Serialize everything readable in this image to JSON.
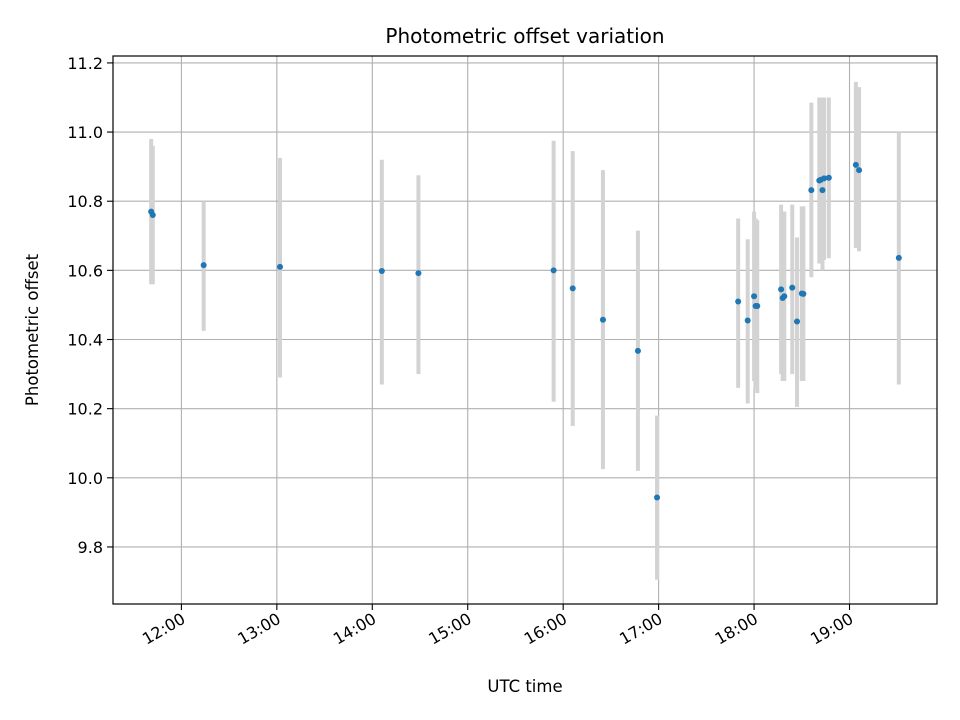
{
  "chart_data": {
    "type": "scatter",
    "title": "Photometric offset variation",
    "xlabel": "UTC time",
    "ylabel": "Photometric offset",
    "grid": true,
    "legend": "none",
    "colors": {
      "point": "#1f77b4",
      "errorbar": "#d3d3d3",
      "grid": "#b0b0b0",
      "axis": "#000000"
    },
    "x_unit": "hours UTC",
    "xlim": [
      "11:17",
      "19:55"
    ],
    "ylim": [
      9.635,
      11.22
    ],
    "x_ticks": [
      "12:00",
      "13:00",
      "14:00",
      "15:00",
      "16:00",
      "17:00",
      "18:00",
      "19:00"
    ],
    "y_ticks": [
      "9.8",
      "10.0",
      "10.2",
      "10.4",
      "10.6",
      "10.8",
      "11.0",
      "11.2"
    ],
    "points": [
      {
        "x": "11:41",
        "y": 10.77,
        "ylow": 10.56,
        "yhigh": 10.98
      },
      {
        "x": "11:42",
        "y": 10.76,
        "ylow": 10.56,
        "yhigh": 10.96
      },
      {
        "x": "12:14",
        "y": 10.615,
        "ylow": 10.425,
        "yhigh": 10.8
      },
      {
        "x": "13:02",
        "y": 10.61,
        "ylow": 10.29,
        "yhigh": 10.925
      },
      {
        "x": "14:06",
        "y": 10.598,
        "ylow": 10.27,
        "yhigh": 10.92
      },
      {
        "x": "14:29",
        "y": 10.592,
        "ylow": 10.3,
        "yhigh": 10.875
      },
      {
        "x": "15:54",
        "y": 10.6,
        "ylow": 10.22,
        "yhigh": 10.975
      },
      {
        "x": "16:06",
        "y": 10.548,
        "ylow": 10.15,
        "yhigh": 10.945
      },
      {
        "x": "16:25",
        "y": 10.457,
        "ylow": 10.025,
        "yhigh": 10.89
      },
      {
        "x": "16:47",
        "y": 10.367,
        "ylow": 10.02,
        "yhigh": 10.715
      },
      {
        "x": "16:59",
        "y": 9.943,
        "ylow": 9.705,
        "yhigh": 10.18
      },
      {
        "x": "17:50",
        "y": 10.51,
        "ylow": 10.26,
        "yhigh": 10.75
      },
      {
        "x": "17:56",
        "y": 10.455,
        "ylow": 10.215,
        "yhigh": 10.69
      },
      {
        "x": "18:00",
        "y": 10.525,
        "ylow": 10.28,
        "yhigh": 10.77
      },
      {
        "x": "18:01",
        "y": 10.497,
        "ylow": 10.26,
        "yhigh": 10.75
      },
      {
        "x": "18:02",
        "y": 10.497,
        "ylow": 10.245,
        "yhigh": 10.745
      },
      {
        "x": "18:17",
        "y": 10.545,
        "ylow": 10.3,
        "yhigh": 10.79
      },
      {
        "x": "18:18",
        "y": 10.52,
        "ylow": 10.28,
        "yhigh": 10.77
      },
      {
        "x": "18:19",
        "y": 10.525,
        "ylow": 10.28,
        "yhigh": 10.77
      },
      {
        "x": "18:24",
        "y": 10.55,
        "ylow": 10.3,
        "yhigh": 10.79
      },
      {
        "x": "18:27",
        "y": 10.452,
        "ylow": 10.205,
        "yhigh": 10.695
      },
      {
        "x": "18:30",
        "y": 10.533,
        "ylow": 10.28,
        "yhigh": 10.785
      },
      {
        "x": "18:31",
        "y": 10.532,
        "ylow": 10.28,
        "yhigh": 10.785
      },
      {
        "x": "18:36",
        "y": 10.832,
        "ylow": 10.58,
        "yhigh": 11.085
      },
      {
        "x": "18:41",
        "y": 10.86,
        "ylow": 10.62,
        "yhigh": 11.1
      },
      {
        "x": "18:42",
        "y": 10.862,
        "ylow": 10.62,
        "yhigh": 11.1
      },
      {
        "x": "18:43",
        "y": 10.832,
        "ylow": 10.6,
        "yhigh": 11.065
      },
      {
        "x": "18:44",
        "y": 10.866,
        "ylow": 10.63,
        "yhigh": 11.1
      },
      {
        "x": "18:47",
        "y": 10.868,
        "ylow": 10.635,
        "yhigh": 11.1
      },
      {
        "x": "19:04",
        "y": 10.905,
        "ylow": 10.665,
        "yhigh": 11.145
      },
      {
        "x": "19:06",
        "y": 10.89,
        "ylow": 10.655,
        "yhigh": 11.13
      },
      {
        "x": "19:31",
        "y": 10.636,
        "ylow": 10.27,
        "yhigh": 11.0
      }
    ]
  }
}
